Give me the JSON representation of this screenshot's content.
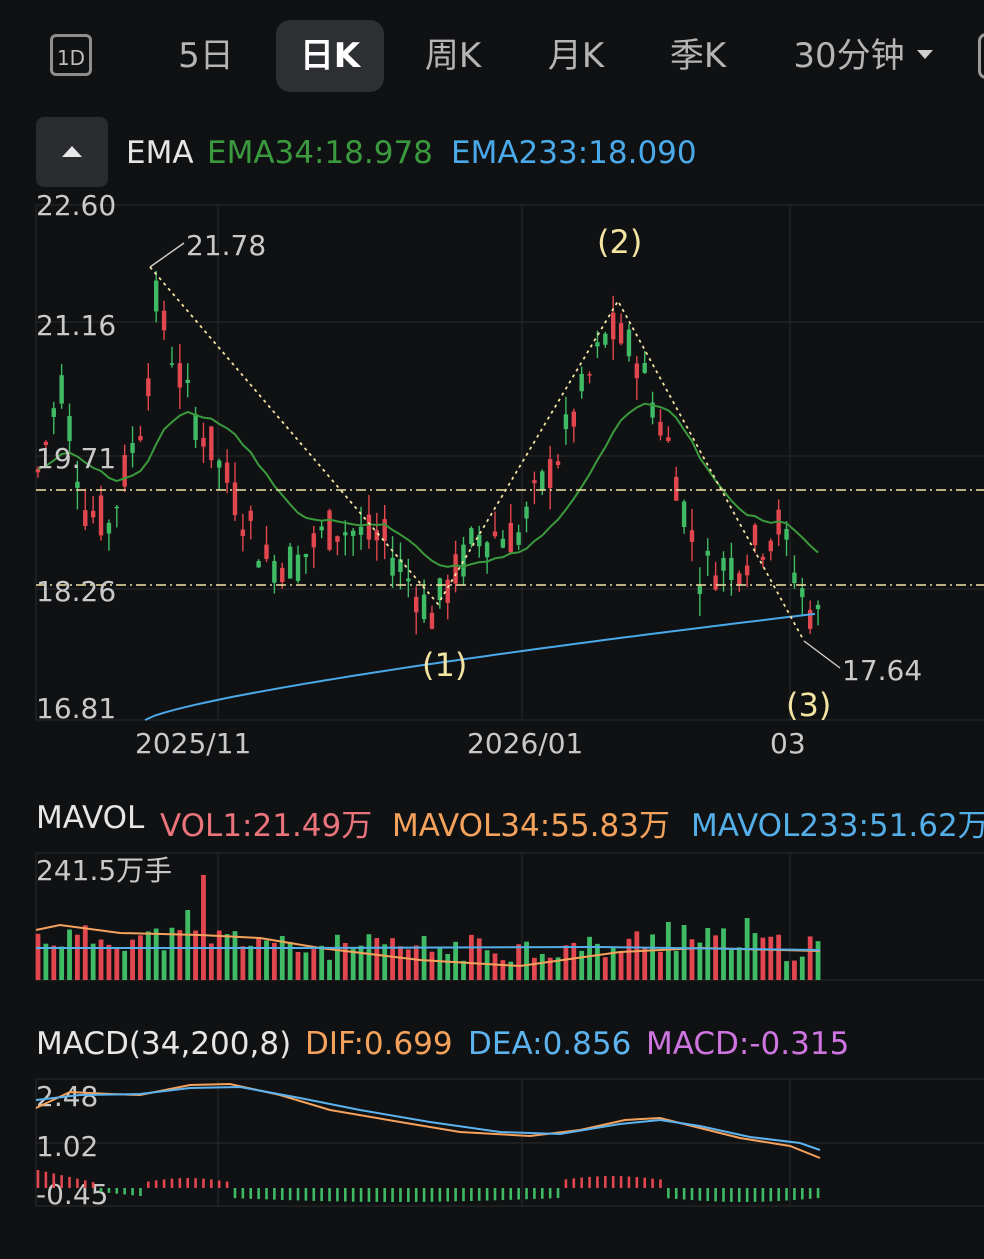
{
  "tabs": [
    {
      "label": "1D",
      "active": false
    },
    {
      "label": "5日",
      "active": false
    },
    {
      "label": "日K",
      "active": true
    },
    {
      "label": "周K",
      "active": false
    },
    {
      "label": "月K",
      "active": false
    },
    {
      "label": "季K",
      "active": false
    },
    {
      "label": "30分钟",
      "active": false,
      "dropdown": true
    }
  ],
  "colors": {
    "up": "#e2464f",
    "down": "#3fbb66",
    "ema34": "#3a9a3d",
    "ema233": "#4aa9e8",
    "mavol34": "#f5a25c",
    "mavol233": "#54aee8",
    "dif": "#f5a25c",
    "dea": "#5cb3ee",
    "macd_label": "#cf75e2",
    "pattern": "#f3e4a2",
    "vol1": "#e9747b"
  },
  "ema": {
    "name": "EMA",
    "ema34": "EMA34:18.978",
    "ema233": "EMA233:18.090"
  },
  "mavol": {
    "name": "MAVOL",
    "vol1": "VOL1:21.49万",
    "mavol34": "MAVOL34:55.83万",
    "mavol233": "MAVOL233:51.62万",
    "max_label": "241.5万手"
  },
  "macd": {
    "name": "MACD(34,200,8)",
    "dif": "DIF:0.699",
    "dea": "DEA:0.856",
    "macd": "MACD:-0.315"
  },
  "chart_data": [
    {
      "type": "candlestick",
      "title": "",
      "y_ticks": [
        "22.60",
        "21.16",
        "19.71",
        "18.26",
        "16.81"
      ],
      "ylim": [
        16.81,
        22.6
      ],
      "x_ticks": [
        "2025/11",
        "2026/01",
        "03"
      ],
      "pattern_points": [
        {
          "label": "21.78",
          "value": 21.78
        },
        {
          "label": "(1)",
          "value": 18.0
        },
        {
          "label": "(2)",
          "value": 21.3
        },
        {
          "label": "(3)",
          "value": 17.64
        },
        {
          "label": "17.64",
          "value": 17.64
        }
      ],
      "pattern_labels": {
        "high": "21.78",
        "low": "17.64",
        "p1": "(1)",
        "p2": "(2)",
        "p3": "(3)"
      },
      "horizontal_lines": [
        19.3,
        18.25
      ],
      "ema34_last": 18.978,
      "ema233_last": 18.09
    },
    {
      "type": "bar",
      "title": "MAVOL",
      "y_max_label": "241.5万手",
      "last_vol": "21.49万",
      "mavol34_last": "55.83万",
      "mavol233_last": "51.62万"
    },
    {
      "type": "line",
      "title": "MACD(34,200,8)",
      "y_ticks": [
        "2.48",
        "1.02",
        "-0.45"
      ],
      "ylim": [
        -0.45,
        2.48
      ],
      "dif_last": 0.699,
      "dea_last": 0.856,
      "macd_last": -0.315
    }
  ]
}
